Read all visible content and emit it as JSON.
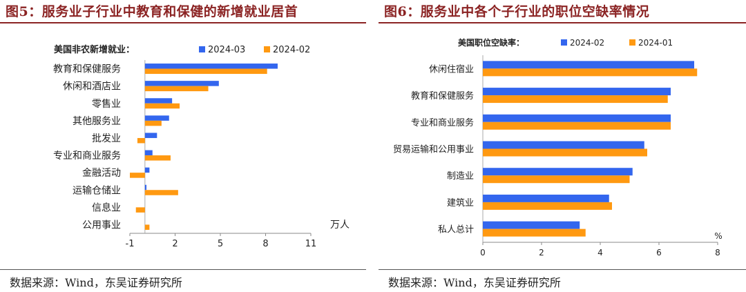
{
  "figures": [
    {
      "title": "图5：服务业子行业中教育和保健的新增就业居首",
      "source": "数据来源：Wind，东吴证券研究所"
    },
    {
      "title": "图6：服务业中各个子行业的职位空缺率情况",
      "source": "数据来源：Wind，东吴证券研究所"
    }
  ],
  "chart_data": [
    {
      "type": "bar",
      "orientation": "horizontal",
      "title": "美国非农新增就业：",
      "unit": "万人",
      "categories": [
        "教育和保健服务",
        "休闲和酒店业",
        "零售业",
        "其他服务业",
        "批发业",
        "专业和商业服务",
        "金融活动",
        "运输仓储业",
        "信息业",
        "公用事业"
      ],
      "series": [
        {
          "name": "2024-03",
          "color": "#3366ee",
          "values": [
            8.8,
            4.9,
            1.8,
            1.6,
            0.8,
            0.5,
            0.3,
            0.1,
            0.0,
            0.0
          ]
        },
        {
          "name": "2024-02",
          "color": "#ff9911",
          "values": [
            8.1,
            4.2,
            2.3,
            1.1,
            -0.5,
            1.7,
            -1.0,
            2.2,
            -0.6,
            0.3
          ]
        }
      ],
      "xlim": [
        -1,
        11
      ],
      "xticks": [
        -1,
        2,
        5,
        8,
        11
      ],
      "legend": "top"
    },
    {
      "type": "bar",
      "orientation": "horizontal",
      "title": "美国职位空缺率：",
      "unit": "%",
      "categories": [
        "休闲住宿业",
        "教育和保健服务",
        "专业和商业服务",
        "贸易运输和公用事业",
        "制造业",
        "建筑业",
        "私人总计"
      ],
      "series": [
        {
          "name": "2024-02",
          "color": "#3366ee",
          "values": [
            7.2,
            6.4,
            6.4,
            5.5,
            5.1,
            4.3,
            3.3
          ]
        },
        {
          "name": "2024-01",
          "color": "#ff9911",
          "values": [
            7.3,
            6.3,
            6.4,
            5.6,
            5.0,
            4.4,
            3.5
          ]
        }
      ],
      "xlim": [
        0,
        8
      ],
      "xticks": [
        0,
        2,
        4,
        6,
        8
      ],
      "legend": "top"
    }
  ]
}
